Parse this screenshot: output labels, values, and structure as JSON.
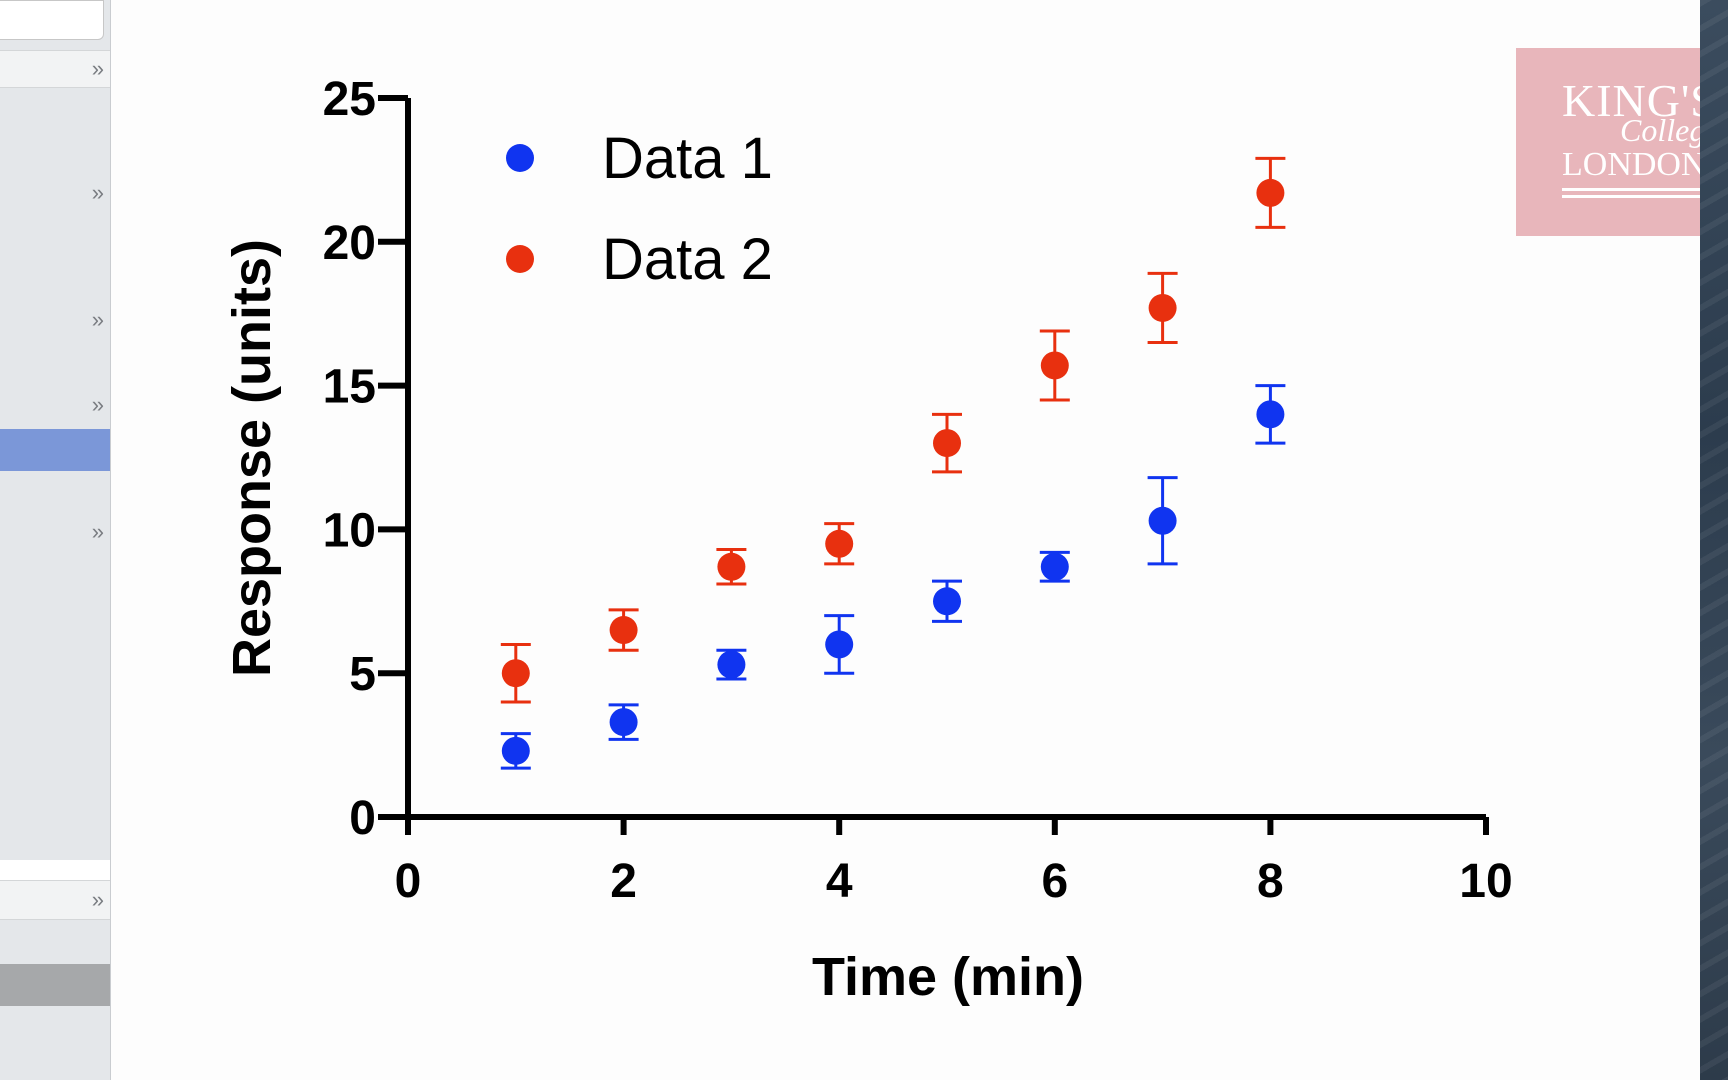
{
  "sidebar": {
    "chevron_glyph": "»",
    "rows": [
      {
        "name": "sidebar-row-1"
      },
      {
        "name": "sidebar-row-2"
      },
      {
        "name": "sidebar-row-3"
      },
      {
        "name": "sidebar-row-4"
      },
      {
        "name": "sidebar-row-5-selected"
      },
      {
        "name": "sidebar-row-6"
      },
      {
        "name": "sidebar-row-7"
      },
      {
        "name": "sidebar-row-8"
      }
    ]
  },
  "logo": {
    "line1": "KING'S",
    "line2": "College",
    "line3": "LONDON"
  },
  "colors": {
    "series1": "#1034f0",
    "series2": "#e8300f",
    "axis": "#000000",
    "selected_row": "#7b97d8"
  },
  "chart_data": {
    "type": "scatter",
    "title": "",
    "xlabel": "Time (min)",
    "ylabel": "Response (units)",
    "xlim": [
      0,
      10
    ],
    "ylim": [
      0,
      25
    ],
    "xticks": [
      "0",
      "2",
      "4",
      "6",
      "8",
      "10"
    ],
    "yticks": [
      "0",
      "5",
      "10",
      "15",
      "20",
      "25"
    ],
    "legend_position": "top-left",
    "series": [
      {
        "name": "Data 1",
        "color": "#1034f0",
        "x": [
          1,
          2,
          3,
          4,
          5,
          6,
          7,
          8
        ],
        "y": [
          2.3,
          3.3,
          5.3,
          6.0,
          7.5,
          8.7,
          10.3,
          14.0
        ],
        "err": [
          0.6,
          0.6,
          0.5,
          1.0,
          0.7,
          0.5,
          1.5,
          1.0
        ]
      },
      {
        "name": "Data 2",
        "color": "#e8300f",
        "x": [
          1,
          2,
          3,
          4,
          5,
          6,
          7,
          8
        ],
        "y": [
          5.0,
          6.5,
          8.7,
          9.5,
          13.0,
          15.7,
          17.7,
          21.7
        ],
        "err": [
          1.0,
          0.7,
          0.6,
          0.7,
          1.0,
          1.2,
          1.2,
          1.2
        ]
      }
    ]
  }
}
